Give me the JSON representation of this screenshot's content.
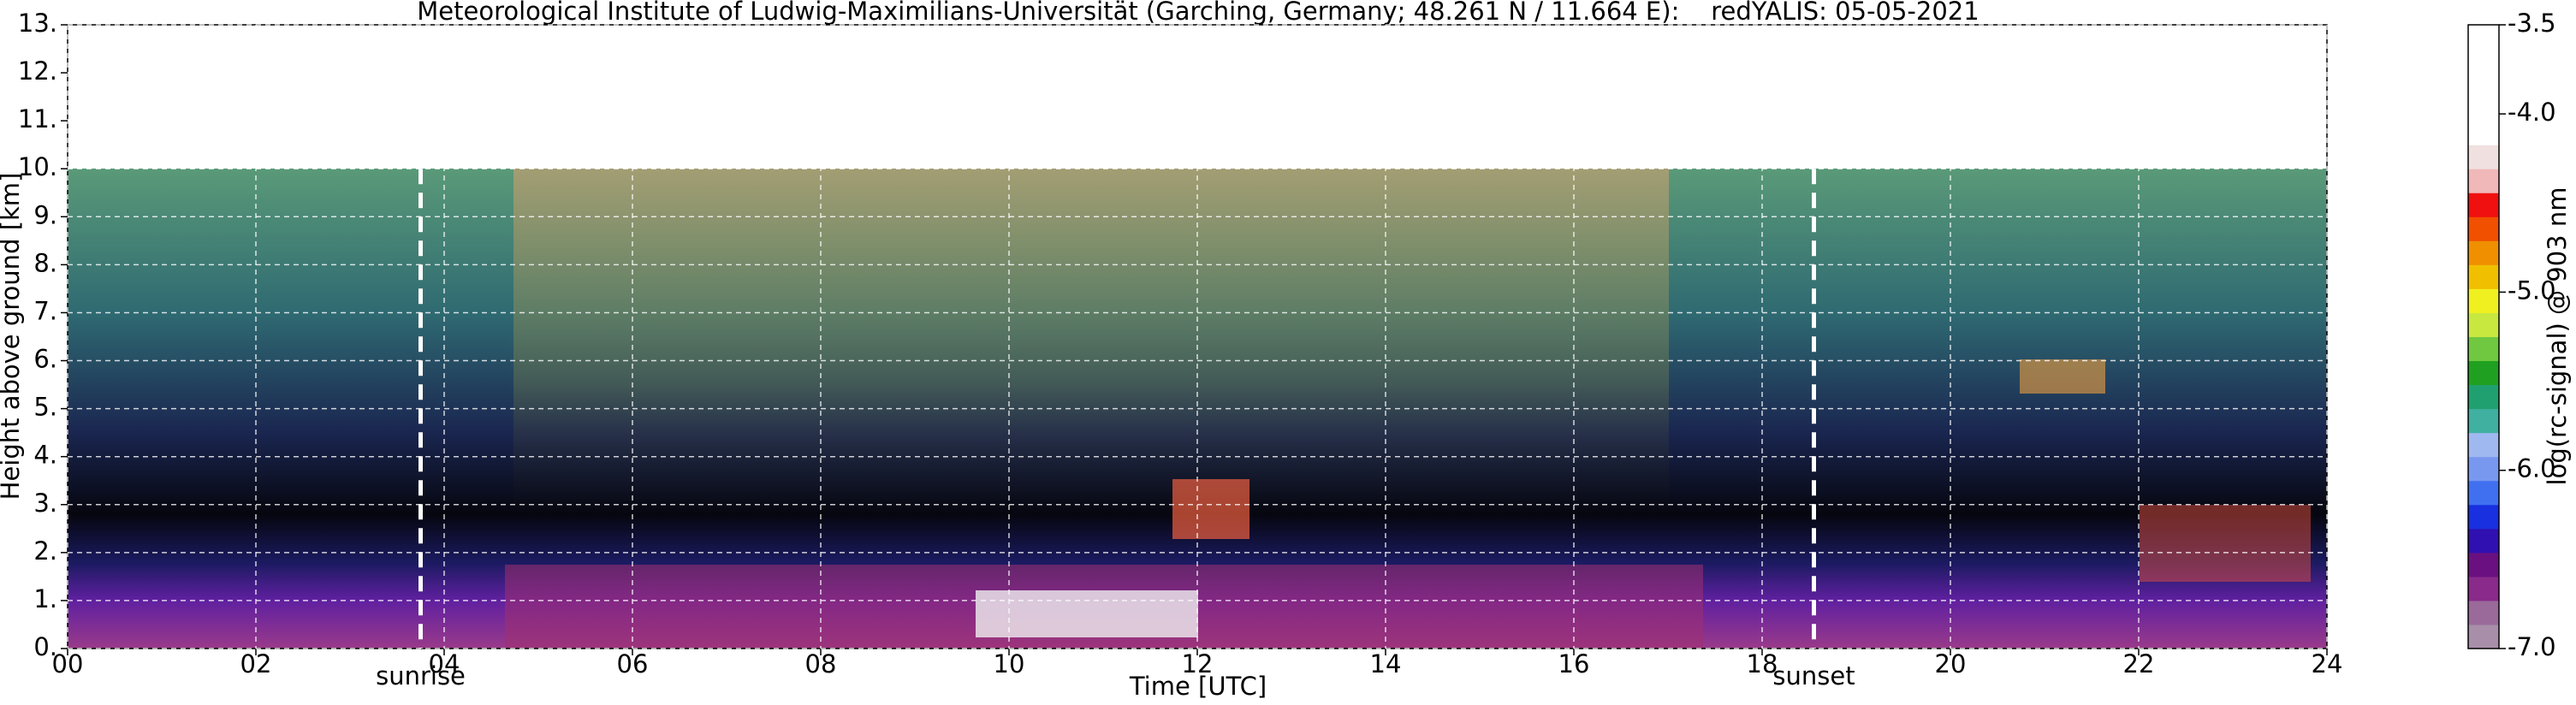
{
  "chart_data": {
    "type": "heatmap",
    "title": "Meteorological Institute of Ludwig-Maximilians-Universität (Garching, Germany; 48.261 N / 11.664 E):    redYALIS: 05-05-2021",
    "xlabel": "Time [UTC]",
    "ylabel": "Height above ground [km]",
    "xlim": [
      0,
      24
    ],
    "ylim": [
      0,
      13
    ],
    "xticks": [
      {
        "value": 0,
        "label": "00"
      },
      {
        "value": 2,
        "label": "02"
      },
      {
        "value": 4,
        "label": "04"
      },
      {
        "value": 6,
        "label": "06"
      },
      {
        "value": 8,
        "label": "08"
      },
      10,
      12,
      14,
      16,
      18,
      20,
      22,
      24
    ],
    "yticks": [
      {
        "value": 0,
        "label": "0."
      },
      {
        "value": 1,
        "label": "1."
      },
      {
        "value": 2,
        "label": "2."
      },
      {
        "value": 3,
        "label": "3."
      },
      {
        "value": 4,
        "label": "4."
      },
      {
        "value": 5,
        "label": "5."
      },
      {
        "value": 6,
        "label": "6."
      },
      {
        "value": 7,
        "label": "7."
      },
      {
        "value": 8,
        "label": "8."
      },
      {
        "value": 9,
        "label": "9."
      },
      {
        "value": 10,
        "label": "10."
      },
      {
        "value": 11,
        "label": "11."
      },
      {
        "value": 12,
        "label": "12."
      },
      {
        "value": 13,
        "label": "13."
      }
    ],
    "grid": true,
    "annotations": [
      {
        "text": "sunrise",
        "x": 3.75
      },
      {
        "text": "sunset",
        "x": 18.55
      }
    ],
    "colorbar": {
      "label": "log(rc-signal) @ 903 nm",
      "lim": [
        -7.0,
        -3.5
      ],
      "ticks": [
        {
          "value": -7.0,
          "label": "-7.0"
        },
        {
          "value": -6.0,
          "label": "-6.0"
        },
        {
          "value": -5.0,
          "label": "-5.0"
        },
        {
          "value": -4.0,
          "label": "-4.0"
        },
        -3.5
      ],
      "colors": [
        "#a88ea8",
        "#9a6a9a",
        "#8a2a8a",
        "#6a1080",
        "#3010b0",
        "#1830e0",
        "#4070f0",
        "#7898f0",
        "#a0b8f0",
        "#40b0a0",
        "#20a070",
        "#20a020",
        "#70c840",
        "#c8e840",
        "#f0f020",
        "#f0c000",
        "#f09000",
        "#f05000",
        "#f01010",
        "#f0b8b8",
        "#f0e0e0",
        "#ffffff",
        "#ffffff",
        "#ffffff",
        "#ffffff",
        "#ffffff"
      ]
    }
  }
}
